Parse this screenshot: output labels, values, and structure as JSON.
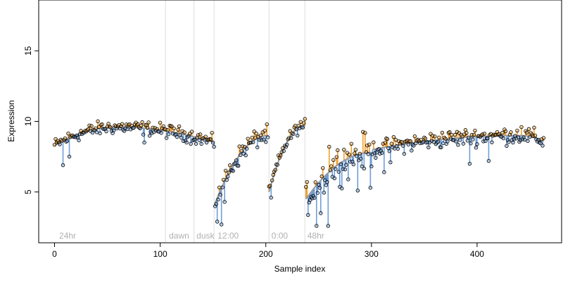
{
  "chart_data": {
    "type": "scatter",
    "title": "",
    "xlabel": "Sample index",
    "ylabel": "Expression",
    "xlim": [
      -15,
      480
    ],
    "ylim": [
      1.4,
      18.6
    ],
    "xticks": [
      0,
      100,
      200,
      300,
      400
    ],
    "yticks": [
      5,
      10,
      15
    ],
    "grid": false,
    "legend": "none",
    "colors": {
      "above": "#f0a030",
      "below": "#6f9fd8",
      "fit": "#999999",
      "point_edge": "#000000",
      "annotation": "#b0b0b0",
      "vline": "#dddddd"
    },
    "annotations": [
      {
        "text": "24hr",
        "x": 3
      },
      {
        "text": "dawn",
        "x": 107
      },
      {
        "text": "dusk",
        "x": 133
      },
      {
        "text": "12:00",
        "x": 153
      },
      {
        "text": "0:00",
        "x": 204
      },
      {
        "text": "48hr",
        "x": 238
      }
    ],
    "vlines": [
      105,
      132,
      151,
      203,
      237
    ],
    "segments": [
      {
        "x0": 0,
        "x1": 151,
        "start": 8.3,
        "peak": 9.6,
        "peak_x": 60,
        "end": 8.5,
        "noise": 0.4,
        "outliers": [
          [
            8,
            6.9
          ],
          [
            14,
            7.5
          ],
          [
            85,
            8.5
          ]
        ]
      },
      {
        "x0": 152,
        "x1": 202,
        "start": 4.2,
        "peak": 9.0,
        "peak_x": 202,
        "end": 9.0,
        "noise": 0.55,
        "outliers": [
          [
            154,
            2.9
          ],
          [
            158,
            2.7
          ],
          [
            161,
            4.3
          ]
        ]
      },
      {
        "x0": 203,
        "x1": 237,
        "start": 5.0,
        "peak": 9.7,
        "peak_x": 237,
        "end": 9.7,
        "noise": 0.35,
        "outliers": [
          [
            205,
            4.6
          ]
        ]
      },
      {
        "x0": 238,
        "x1": 300,
        "start": 4.5,
        "peak": 7.8,
        "peak_x": 300,
        "end": 7.8,
        "noise": 1.1,
        "outliers": [
          [
            248,
            2.6
          ],
          [
            252,
            3.5
          ],
          [
            259,
            2.6
          ],
          [
            260,
            8.2
          ],
          [
            287,
            5.1
          ],
          [
            299,
            5.3
          ]
        ]
      },
      {
        "x0": 301,
        "x1": 463,
        "start": 8.0,
        "peak": 9.0,
        "peak_x": 440,
        "end": 8.6,
        "noise": 0.5,
        "outliers": [
          [
            312,
            6.4
          ],
          [
            318,
            7.1
          ],
          [
            393,
            7.0
          ],
          [
            411,
            7.2
          ],
          [
            442,
            9.6
          ]
        ]
      }
    ]
  }
}
